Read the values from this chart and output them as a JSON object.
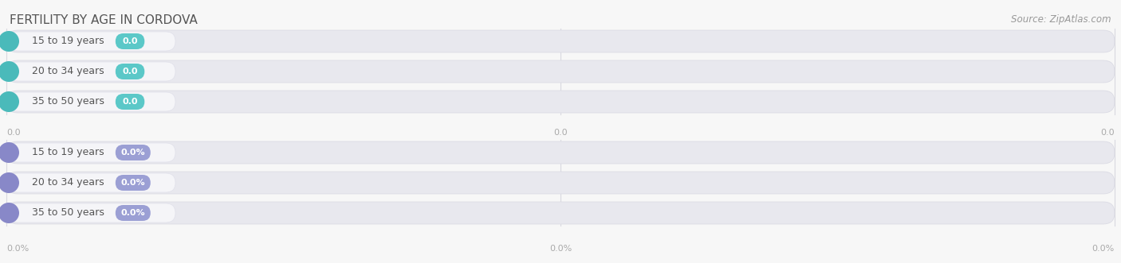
{
  "title": "FERTILITY BY AGE IN CORDOVA",
  "source": "Source: ZipAtlas.com",
  "groups": [
    {
      "categories": [
        "15 to 19 years",
        "20 to 34 years",
        "35 to 50 years"
      ],
      "values": [
        0.0,
        0.0,
        0.0
      ],
      "value_labels": [
        "0.0",
        "0.0",
        "0.0"
      ],
      "bar_color": "#5bc8c8",
      "dot_color": "#4ababa",
      "label_color": "#555555",
      "value_color": "#ffffff",
      "axis_ticks": [
        "0.0",
        "0.0",
        "0.0"
      ]
    },
    {
      "categories": [
        "15 to 19 years",
        "20 to 34 years",
        "35 to 50 years"
      ],
      "values": [
        0.0,
        0.0,
        0.0
      ],
      "value_labels": [
        "0.0%",
        "0.0%",
        "0.0%"
      ],
      "bar_color": "#9b9fd4",
      "dot_color": "#8888c8",
      "label_color": "#555555",
      "value_color": "#ffffff",
      "axis_ticks": [
        "0.0%",
        "0.0%",
        "0.0%"
      ]
    }
  ],
  "background_color": "#f7f7f7",
  "pill_bg_color": "#e8e8ee",
  "pill_bg_edge": "#d8d8e2",
  "inner_pill_color": "#f5f5f8",
  "inner_pill_edge": "#e0e0ea",
  "title_color": "#555555",
  "source_color": "#999999",
  "axis_tick_color": "#aaaaaa",
  "grid_color": "#d8d8e0",
  "title_fontsize": 11,
  "source_fontsize": 8.5,
  "label_fontsize": 9,
  "value_fontsize": 8,
  "axis_fontsize": 8
}
